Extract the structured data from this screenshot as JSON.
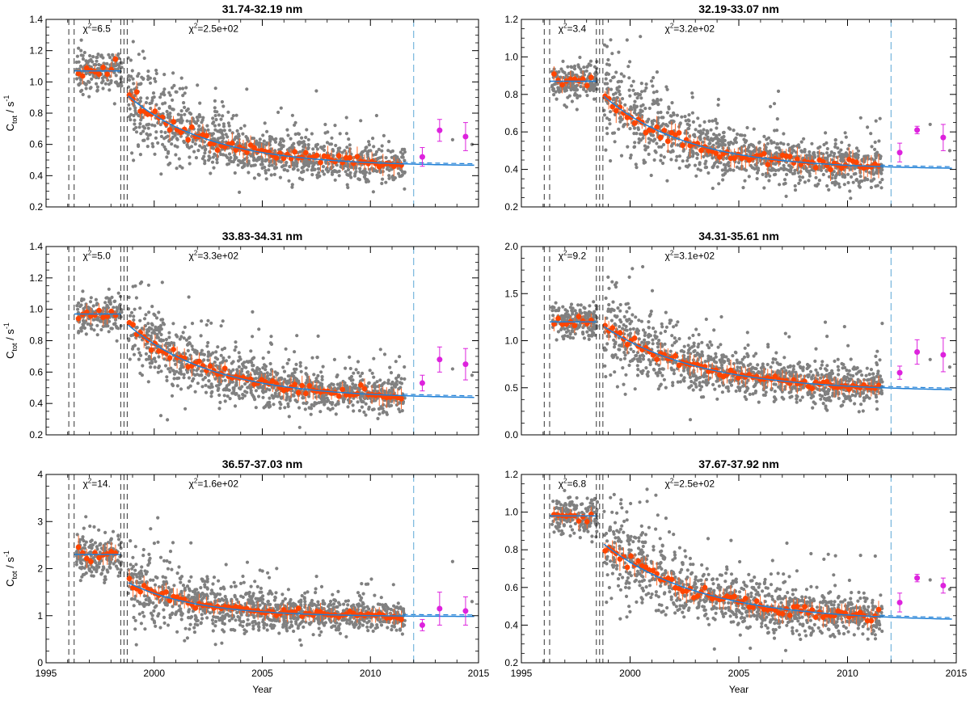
{
  "figure": {
    "x_label": "Year",
    "y_label_main": "C",
    "y_label_sub": "tot",
    "y_label_unit": " / s",
    "y_label_exp": "-1",
    "chi_symbol": "χ",
    "chi_exp": "2"
  },
  "colors": {
    "scatter": "#808080",
    "binned": "#ff4500",
    "error_bar": "#ff6a2a",
    "fit": "#1e7fd6",
    "recent": "#dd22dd",
    "marker_line": "#000000",
    "cutoff_line": "#5aa7d6"
  },
  "chart_data": [
    {
      "type": "scatter",
      "title": "31.74-32.19 nm",
      "xlabel": "Year",
      "ylabel": "C_tot / s^-1",
      "xlim": [
        1995,
        2015
      ],
      "ylim": [
        0.2,
        1.4
      ],
      "yticks": [
        0.2,
        0.4,
        0.6,
        0.8,
        1.0,
        1.2,
        1.4
      ],
      "ytick_labels": [
        "0.2",
        "0.4",
        "0.6",
        "0.8",
        "1.0",
        "1.2",
        "1.4"
      ],
      "xticks": [
        1995,
        2000,
        2005,
        2010,
        2015
      ],
      "xtick_labels": [
        "1995",
        "2000",
        "2005",
        "2010",
        "2015"
      ],
      "vertical_lines": [
        1996.05,
        1996.3,
        1998.45,
        1998.6,
        1998.75
      ],
      "cutoff_line": 2012.0,
      "annotations": [
        {
          "text": "=6.5",
          "x": 1996.7,
          "y_frac": 0.96
        },
        {
          "text": "=2.5e+02",
          "x": 2001.6,
          "y_frac": 0.96
        }
      ],
      "early_level": 1.07,
      "early_spread": 0.06,
      "fit": {
        "start": 1998.8,
        "start_value": 0.91,
        "asymptote": 0.46,
        "tau": 3.8,
        "end_value": 0.5
      },
      "scatter_spread": 0.12,
      "recent_points": [
        {
          "x": 2012.4,
          "y": 0.52,
          "err": 0.06
        },
        {
          "x": 2013.2,
          "y": 0.69,
          "err": 0.07
        },
        {
          "x": 2014.4,
          "y": 0.65,
          "err": 0.09
        }
      ],
      "recent_dots": [
        {
          "x": 2013.8,
          "y": 0.63
        },
        {
          "x": 2014.7,
          "y": 0.6
        }
      ]
    },
    {
      "type": "scatter",
      "title": "32.19-33.07 nm",
      "xlabel": "Year",
      "ylabel": "C_tot / s^-1",
      "xlim": [
        1995,
        2015
      ],
      "ylim": [
        0.2,
        1.2
      ],
      "yticks": [
        0.2,
        0.4,
        0.6,
        0.8,
        1.0,
        1.2
      ],
      "ytick_labels": [
        "0.2",
        "0.4",
        "0.6",
        "0.8",
        "1.0",
        "1.2"
      ],
      "xticks": [
        1995,
        2000,
        2005,
        2010,
        2015
      ],
      "xtick_labels": [
        "1995",
        "2000",
        "2005",
        "2010",
        "2015"
      ],
      "vertical_lines": [
        1996.05,
        1996.3,
        1998.45,
        1998.6,
        1998.75
      ],
      "cutoff_line": 2012.0,
      "annotations": [
        {
          "text": "=3.4",
          "x": 1996.7,
          "y_frac": 0.96
        },
        {
          "text": "=3.2e+02",
          "x": 2001.6,
          "y_frac": 0.96
        }
      ],
      "early_level": 0.87,
      "early_spread": 0.05,
      "fit": {
        "start": 1998.8,
        "start_value": 0.79,
        "asymptote": 0.4,
        "tau": 3.9,
        "end_value": 0.43
      },
      "scatter_spread": 0.11,
      "recent_points": [
        {
          "x": 2012.4,
          "y": 0.49,
          "err": 0.05
        },
        {
          "x": 2013.2,
          "y": 0.61,
          "err": 0.02
        },
        {
          "x": 2014.4,
          "y": 0.57,
          "err": 0.07
        }
      ],
      "recent_dots": [
        {
          "x": 2013.8,
          "y": 0.64
        },
        {
          "x": 2014.7,
          "y": 0.5
        }
      ]
    },
    {
      "type": "scatter",
      "title": "33.83-34.31 nm",
      "xlabel": "Year",
      "ylabel": "C_tot / s^-1",
      "xlim": [
        1995,
        2015
      ],
      "ylim": [
        0.2,
        1.4
      ],
      "yticks": [
        0.2,
        0.4,
        0.6,
        0.8,
        1.0,
        1.2,
        1.4
      ],
      "ytick_labels": [
        "0.2",
        "0.4",
        "0.6",
        "0.8",
        "1.0",
        "1.2",
        "1.4"
      ],
      "xticks": [
        1995,
        2000,
        2005,
        2010,
        2015
      ],
      "xtick_labels": [
        "1995",
        "2000",
        "2005",
        "2010",
        "2015"
      ],
      "vertical_lines": [
        1996.05,
        1996.3,
        1998.45,
        1998.6,
        1998.75
      ],
      "cutoff_line": 2012.0,
      "annotations": [
        {
          "text": "=5.0",
          "x": 1996.7,
          "y_frac": 0.96
        },
        {
          "text": "=3.3e+02",
          "x": 2001.6,
          "y_frac": 0.96
        }
      ],
      "early_level": 0.97,
      "early_spread": 0.06,
      "fit": {
        "start": 1998.8,
        "start_value": 0.9,
        "asymptote": 0.43,
        "tau": 4.0,
        "end_value": 0.47
      },
      "scatter_spread": 0.12,
      "recent_points": [
        {
          "x": 2012.4,
          "y": 0.53,
          "err": 0.05
        },
        {
          "x": 2013.2,
          "y": 0.68,
          "err": 0.08
        },
        {
          "x": 2014.4,
          "y": 0.65,
          "err": 0.1
        }
      ],
      "recent_dots": [
        {
          "x": 2013.8,
          "y": 0.62
        },
        {
          "x": 2014.7,
          "y": 0.58
        }
      ]
    },
    {
      "type": "scatter",
      "title": "34.31-35.61 nm",
      "xlabel": "Year",
      "ylabel": "C_tot / s^-1",
      "xlim": [
        1995,
        2015
      ],
      "ylim": [
        0.0,
        2.0
      ],
      "yticks": [
        0.0,
        0.5,
        1.0,
        1.5,
        2.0
      ],
      "ytick_labels": [
        "0.0",
        "0.5",
        "1.0",
        "1.5",
        "2.0"
      ],
      "xticks": [
        1995,
        2000,
        2005,
        2010,
        2015
      ],
      "xtick_labels": [
        "1995",
        "2000",
        "2005",
        "2010",
        "2015"
      ],
      "vertical_lines": [
        1996.05,
        1996.3,
        1998.45,
        1998.6,
        1998.75
      ],
      "cutoff_line": 2012.0,
      "annotations": [
        {
          "text": "=9.2",
          "x": 1996.7,
          "y_frac": 0.96
        },
        {
          "text": "=3.1e+02",
          "x": 2001.6,
          "y_frac": 0.96
        }
      ],
      "early_level": 1.2,
      "early_spread": 0.09,
      "fit": {
        "start": 1998.8,
        "start_value": 1.15,
        "asymptote": 0.46,
        "tau": 4.5,
        "end_value": 0.52
      },
      "scatter_spread": 0.2,
      "recent_points": [
        {
          "x": 2012.4,
          "y": 0.66,
          "err": 0.07
        },
        {
          "x": 2013.2,
          "y": 0.88,
          "err": 0.13
        },
        {
          "x": 2014.4,
          "y": 0.85,
          "err": 0.18
        }
      ],
      "recent_dots": [
        {
          "x": 2013.8,
          "y": 0.8
        },
        {
          "x": 2014.7,
          "y": 0.72
        }
      ]
    },
    {
      "type": "scatter",
      "title": "36.57-37.03 nm",
      "xlabel": "Year",
      "ylabel": "C_tot / s^-1",
      "xlim": [
        1995,
        2015
      ],
      "ylim": [
        0,
        4
      ],
      "yticks": [
        0,
        1,
        2,
        3,
        4
      ],
      "ytick_labels": [
        "0",
        "1",
        "2",
        "3",
        "4"
      ],
      "xticks": [
        1995,
        2000,
        2005,
        2010,
        2015
      ],
      "xtick_labels": [
        "1995",
        "2000",
        "2005",
        "2010",
        "2015"
      ],
      "vertical_lines": [
        1996.05,
        1996.3,
        1998.45,
        1998.6,
        1998.75
      ],
      "cutoff_line": 2012.0,
      "annotations": [
        {
          "text": "=14.",
          "x": 1996.7,
          "y_frac": 0.96
        },
        {
          "text": "=1.6e+02",
          "x": 2001.6,
          "y_frac": 0.96
        }
      ],
      "early_level": 2.3,
      "early_spread": 0.25,
      "fit": {
        "start": 1998.8,
        "start_value": 1.7,
        "asymptote": 0.98,
        "tau": 3.2,
        "end_value": 1.0
      },
      "scatter_spread": 0.35,
      "recent_points": [
        {
          "x": 2012.4,
          "y": 0.8,
          "err": 0.12
        },
        {
          "x": 2013.2,
          "y": 1.15,
          "err": 0.35
        },
        {
          "x": 2014.4,
          "y": 1.1,
          "err": 0.3
        }
      ],
      "recent_dots": [
        {
          "x": 2013.8,
          "y": 2.15
        },
        {
          "x": 2014.7,
          "y": 1.3
        }
      ]
    },
    {
      "type": "scatter",
      "title": "37.67-37.92 nm",
      "xlabel": "Year",
      "ylabel": "C_tot / s^-1",
      "xlim": [
        1995,
        2015
      ],
      "ylim": [
        0.2,
        1.2
      ],
      "yticks": [
        0.2,
        0.4,
        0.6,
        0.8,
        1.0,
        1.2
      ],
      "ytick_labels": [
        "0.2",
        "0.4",
        "0.6",
        "0.8",
        "1.0",
        "1.2"
      ],
      "xticks": [
        1995,
        2000,
        2005,
        2010,
        2015
      ],
      "xtick_labels": [
        "1995",
        "2000",
        "2005",
        "2010",
        "2015"
      ],
      "vertical_lines": [
        1996.05,
        1996.3,
        1998.45,
        1998.6,
        1998.75
      ],
      "cutoff_line": 2012.0,
      "annotations": [
        {
          "text": "=6.8",
          "x": 1996.7,
          "y_frac": 0.96
        },
        {
          "text": "=2.5e+02",
          "x": 2001.6,
          "y_frac": 0.96
        }
      ],
      "early_level": 0.98,
      "early_spread": 0.05,
      "fit": {
        "start": 1998.8,
        "start_value": 0.83,
        "asymptote": 0.42,
        "tau": 4.5,
        "end_value": 0.46
      },
      "scatter_spread": 0.11,
      "recent_points": [
        {
          "x": 2012.4,
          "y": 0.52,
          "err": 0.05
        },
        {
          "x": 2013.2,
          "y": 0.65,
          "err": 0.02
        },
        {
          "x": 2014.4,
          "y": 0.61,
          "err": 0.04
        }
      ],
      "recent_dots": [
        {
          "x": 2013.8,
          "y": 0.64
        },
        {
          "x": 2014.7,
          "y": 0.59
        }
      ]
    }
  ]
}
